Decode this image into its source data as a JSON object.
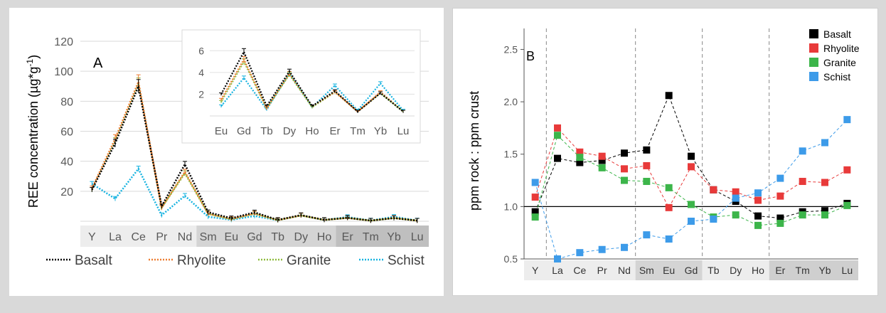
{
  "chart_data": [
    {
      "type": "line",
      "panel_label": "A",
      "ylabel": "REE concentration (µg*g",
      "ylabel_sup": "-1",
      "ylabel_close": ")",
      "ylim": [
        0,
        120
      ],
      "yticks": [
        "20",
        "40",
        "60",
        "80",
        "100",
        "120"
      ],
      "categories": [
        "Y",
        "La",
        "Ce",
        "Pr",
        "Nd",
        "Sm",
        "Eu",
        "Gd",
        "Tb",
        "Dy",
        "Ho",
        "Er",
        "Tm",
        "Yb",
        "Lu"
      ],
      "legend_position": "bottom",
      "series": [
        {
          "name": "Basalt",
          "color": "#000000",
          "values": [
            21,
            52,
            90,
            10,
            38,
            6,
            2,
            5.9,
            0.9,
            4.1,
            0.9,
            2.3,
            0.4,
            2.1,
            0.4
          ]
        },
        {
          "name": "Rhyolite",
          "color": "#ed7d31",
          "values": [
            22,
            55,
            93,
            9,
            33,
            5,
            1.5,
            5.2,
            0.7,
            3.9,
            0.9,
            2.2,
            0.4,
            2.2,
            0.4
          ]
        },
        {
          "name": "Granite",
          "color": "#8fbc3f",
          "values": [
            21,
            53,
            91,
            9,
            32,
            5,
            1.3,
            5,
            0.7,
            3.8,
            0.8,
            2.2,
            0.4,
            2.1,
            0.4
          ]
        },
        {
          "name": "Schist",
          "color": "#17b3e0",
          "values": [
            25,
            15,
            35,
            4,
            17,
            3,
            0.9,
            3.5,
            0.6,
            3.9,
            0.8,
            2.8,
            0.5,
            3.0,
            0.5
          ]
        }
      ],
      "inset": {
        "categories": [
          "Eu",
          "Gd",
          "Tb",
          "Dy",
          "Ho",
          "Er",
          "Tm",
          "Yb",
          "Lu"
        ],
        "yticks": [
          "2",
          "4",
          "6"
        ],
        "ylim": [
          0,
          7
        ]
      }
    },
    {
      "type": "scatter",
      "panel_label": "B",
      "ylabel": "ppm rock : ppm crust",
      "ylim": [
        0.5,
        2.7
      ],
      "yticks": [
        "0.5",
        "1.0",
        "1.5",
        "2.0",
        "2.5"
      ],
      "reference_line": 1.0,
      "categories": [
        "Y",
        "La",
        "Ce",
        "Pr",
        "Nd",
        "Sm",
        "Eu",
        "Gd",
        "Tb",
        "Dy",
        "Ho",
        "Er",
        "Tm",
        "Yb",
        "Lu"
      ],
      "legend_position": "top-right",
      "series": [
        {
          "name": "Basalt",
          "color": "#000000",
          "values": [
            0.95,
            1.46,
            1.42,
            1.44,
            1.51,
            1.54,
            2.06,
            1.48,
            1.16,
            1.05,
            0.91,
            0.89,
            0.95,
            0.96,
            1.03
          ]
        },
        {
          "name": "Rhyolite",
          "color": "#e83a3a",
          "values": [
            1.09,
            1.75,
            1.52,
            1.48,
            1.36,
            1.39,
            0.99,
            1.38,
            1.16,
            1.14,
            1.06,
            1.1,
            1.24,
            1.23,
            1.35
          ]
        },
        {
          "name": "Granite",
          "color": "#3cb54a",
          "values": [
            0.9,
            1.68,
            1.47,
            1.37,
            1.25,
            1.24,
            1.18,
            1.02,
            0.9,
            0.92,
            0.82,
            0.84,
            0.92,
            0.92,
            1.01
          ]
        },
        {
          "name": "Schist",
          "color": "#3d9be9",
          "values": [
            1.23,
            0.5,
            0.56,
            0.59,
            0.61,
            0.73,
            0.69,
            0.86,
            0.88,
            1.08,
            1.13,
            1.27,
            1.53,
            1.61,
            1.83
          ]
        }
      ]
    }
  ]
}
